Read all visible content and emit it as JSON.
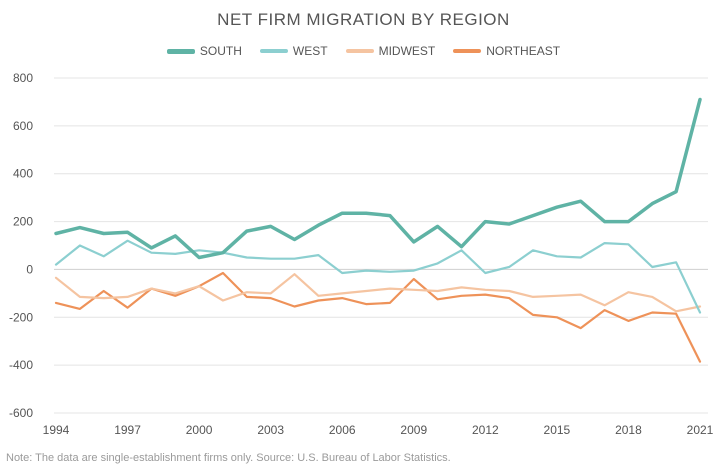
{
  "chart_data": {
    "type": "line",
    "title": "NET FIRM MIGRATION BY REGION",
    "xlabel": "",
    "ylabel": "",
    "x": [
      1994,
      1995,
      1996,
      1997,
      1998,
      1999,
      2000,
      2001,
      2002,
      2003,
      2004,
      2005,
      2006,
      2007,
      2008,
      2009,
      2010,
      2011,
      2012,
      2013,
      2014,
      2015,
      2016,
      2017,
      2018,
      2019,
      2020,
      2021
    ],
    "x_tick_labels": [
      "1994",
      "1997",
      "2000",
      "2003",
      "2006",
      "2009",
      "2012",
      "2015",
      "2018",
      "2021"
    ],
    "y_tick_labels": [
      "800",
      "600",
      "400",
      "200",
      "0",
      "-200",
      "-400",
      "-600"
    ],
    "ylim": [
      -600,
      800
    ],
    "grid": "horizontal",
    "legend_position": "top",
    "series": [
      {
        "name": "SOUTH",
        "color": "#5fb3a5",
        "width": 3.5,
        "values": [
          150,
          175,
          150,
          155,
          90,
          140,
          50,
          70,
          160,
          180,
          125,
          185,
          235,
          235,
          225,
          115,
          180,
          95,
          200,
          190,
          225,
          260,
          285,
          200,
          200,
          275,
          325,
          710
        ]
      },
      {
        "name": "WEST",
        "color": "#8ccfd0",
        "width": 2.2,
        "values": [
          20,
          100,
          55,
          120,
          70,
          65,
          80,
          70,
          50,
          45,
          45,
          60,
          -15,
          -5,
          -10,
          -5,
          25,
          80,
          -15,
          10,
          80,
          55,
          50,
          110,
          105,
          10,
          30,
          -180
        ]
      },
      {
        "name": "MIDWEST",
        "color": "#f5c4a1",
        "width": 2.2,
        "values": [
          -35,
          -115,
          -120,
          -115,
          -80,
          -100,
          -70,
          -130,
          -95,
          -100,
          -20,
          -110,
          -100,
          -90,
          -80,
          -85,
          -90,
          -75,
          -85,
          -90,
          -115,
          -110,
          -105,
          -150,
          -95,
          -115,
          -175,
          -155
        ]
      },
      {
        "name": "NORTHEAST",
        "color": "#ee9259",
        "width": 2.2,
        "values": [
          -140,
          -165,
          -90,
          -160,
          -80,
          -110,
          -70,
          -15,
          -115,
          -120,
          -155,
          -130,
          -120,
          -145,
          -140,
          -40,
          -125,
          -110,
          -105,
          -120,
          -190,
          -200,
          -245,
          -170,
          -215,
          -180,
          -185,
          -385
        ]
      }
    ],
    "footnote": "Note: The data are single-establishment firms only. Source: U.S. Bureau of Labor Statistics."
  }
}
